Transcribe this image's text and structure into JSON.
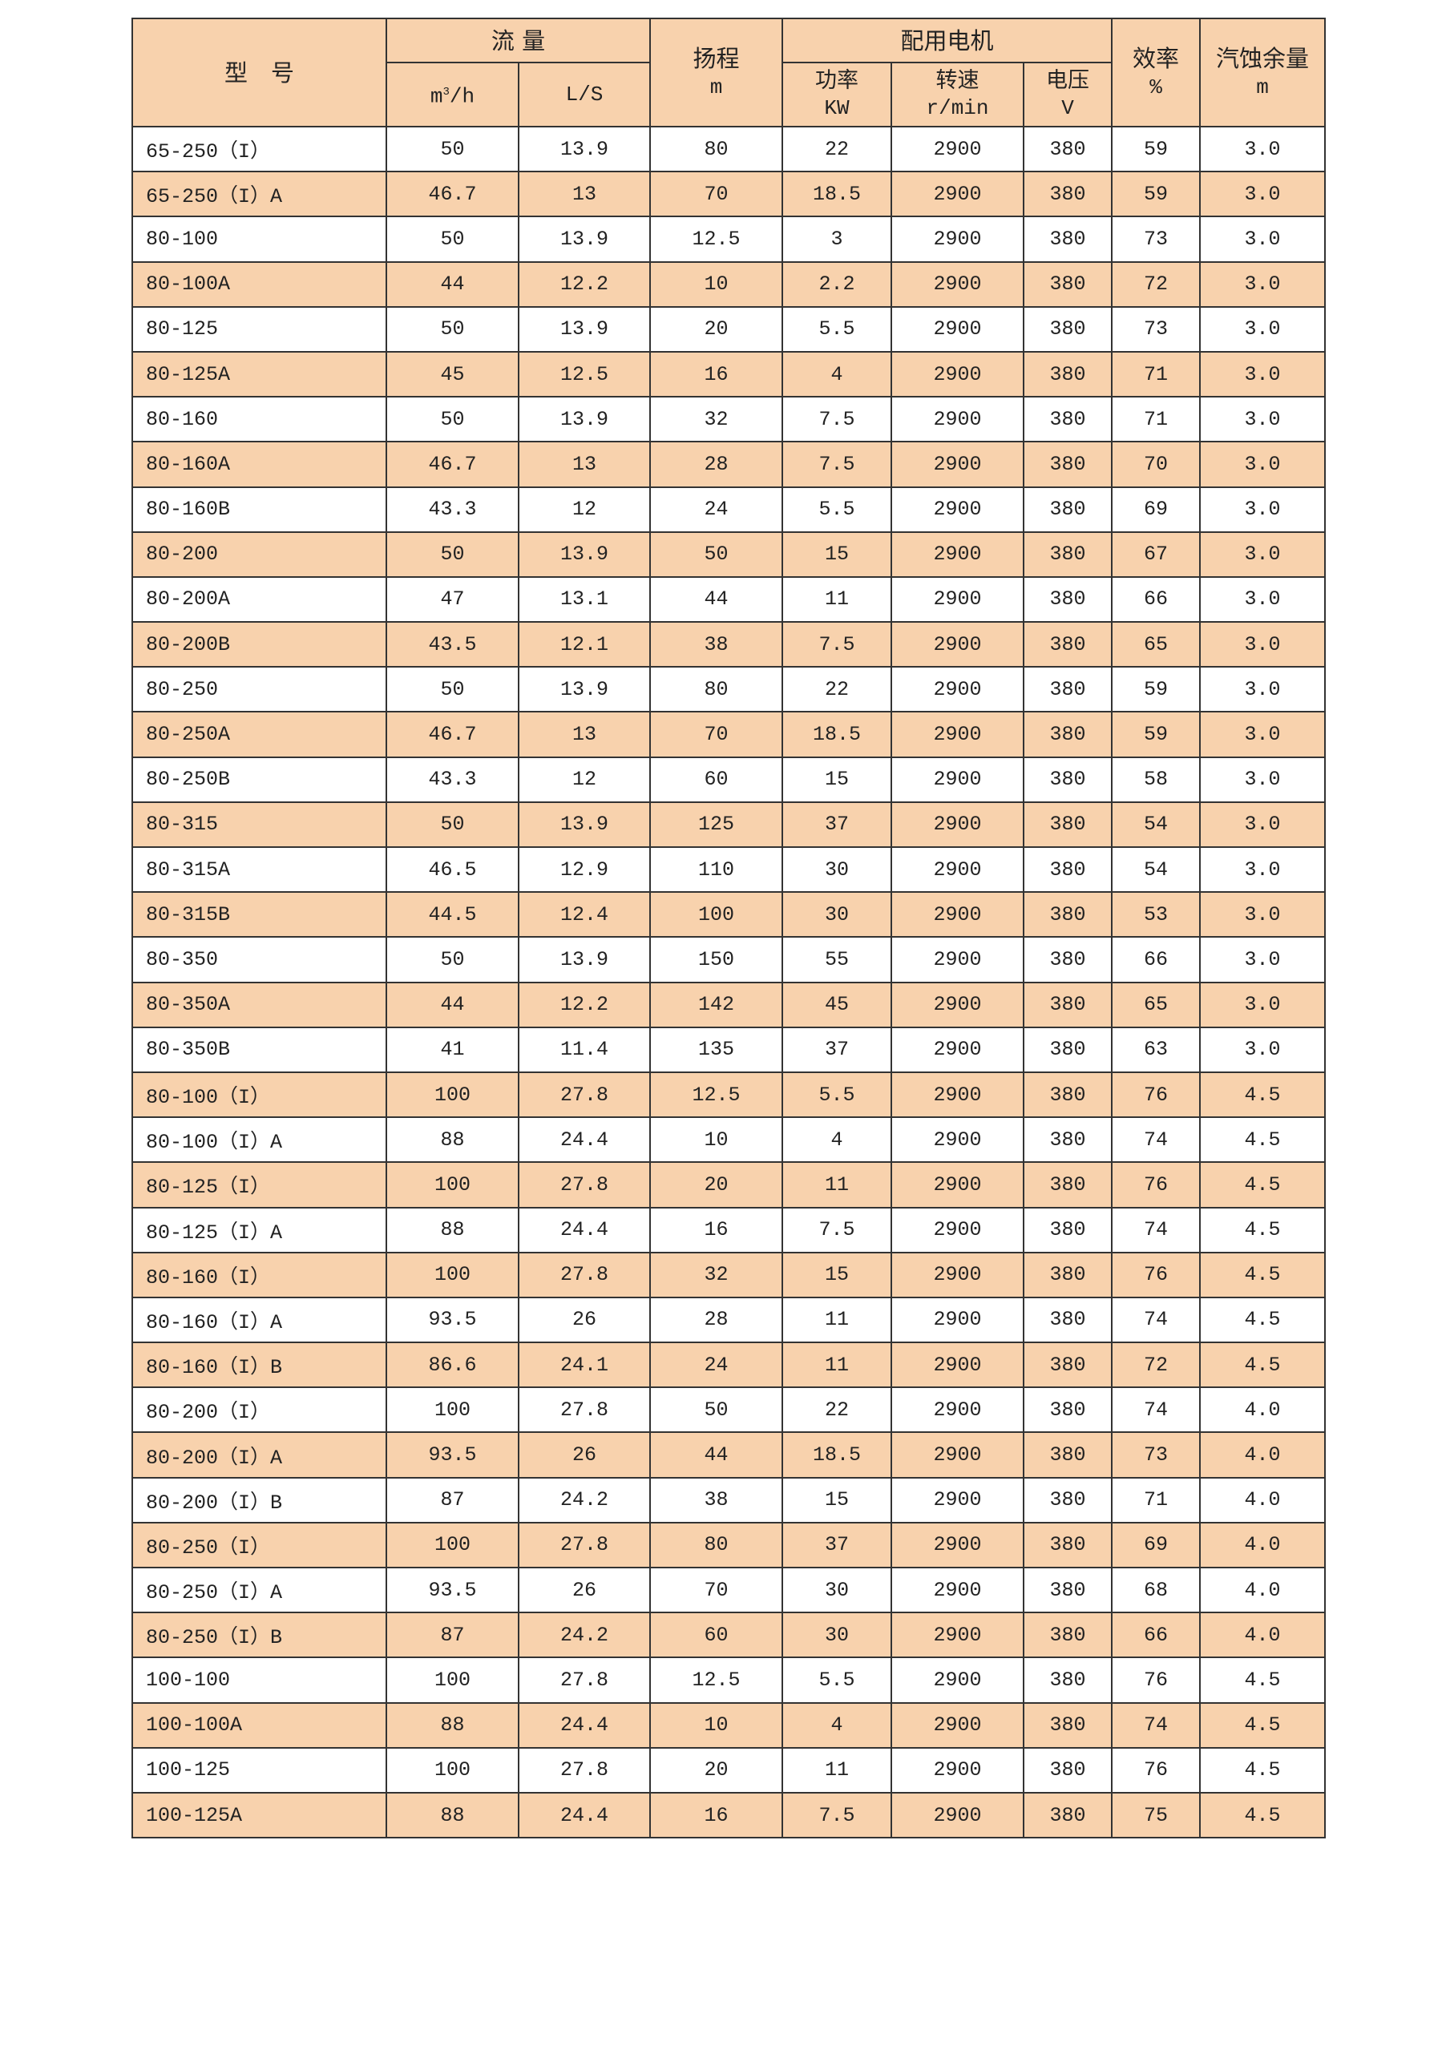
{
  "header": {
    "model": "型　号",
    "flow": "流 量",
    "flow_m3h_unit": "m",
    "flow_m3h_sup": "3",
    "flow_m3h_tail": "/h",
    "flow_ls": "L/S",
    "head": "扬程",
    "head_unit": "m",
    "motor": "配用电机",
    "power": "功率",
    "power_unit": "KW",
    "speed": "转速",
    "speed_unit": "r/min",
    "voltage": "电压",
    "voltage_unit": "V",
    "efficiency": "效率",
    "efficiency_unit": "%",
    "npsh": "汽蚀余量",
    "npsh_unit": "m"
  },
  "row_shading_color": "#f8d2ad",
  "rows": [
    [
      "65-250（I）",
      "50",
      "13.9",
      "80",
      "22",
      "2900",
      "380",
      "59",
      "3.0"
    ],
    [
      "65-250（I）A",
      "46.7",
      "13",
      "70",
      "18.5",
      "2900",
      "380",
      "59",
      "3.0"
    ],
    [
      "80-100",
      "50",
      "13.9",
      "12.5",
      "3",
      "2900",
      "380",
      "73",
      "3.0"
    ],
    [
      "80-100A",
      "44",
      "12.2",
      "10",
      "2.2",
      "2900",
      "380",
      "72",
      "3.0"
    ],
    [
      "80-125",
      "50",
      "13.9",
      "20",
      "5.5",
      "2900",
      "380",
      "73",
      "3.0"
    ],
    [
      "80-125A",
      "45",
      "12.5",
      "16",
      "4",
      "2900",
      "380",
      "71",
      "3.0"
    ],
    [
      "80-160",
      "50",
      "13.9",
      "32",
      "7.5",
      "2900",
      "380",
      "71",
      "3.0"
    ],
    [
      "80-160A",
      "46.7",
      "13",
      "28",
      "7.5",
      "2900",
      "380",
      "70",
      "3.0"
    ],
    [
      "80-160B",
      "43.3",
      "12",
      "24",
      "5.5",
      "2900",
      "380",
      "69",
      "3.0"
    ],
    [
      "80-200",
      "50",
      "13.9",
      "50",
      "15",
      "2900",
      "380",
      "67",
      "3.0"
    ],
    [
      "80-200A",
      "47",
      "13.1",
      "44",
      "11",
      "2900",
      "380",
      "66",
      "3.0"
    ],
    [
      "80-200B",
      "43.5",
      "12.1",
      "38",
      "7.5",
      "2900",
      "380",
      "65",
      "3.0"
    ],
    [
      "80-250",
      "50",
      "13.9",
      "80",
      "22",
      "2900",
      "380",
      "59",
      "3.0"
    ],
    [
      "80-250A",
      "46.7",
      "13",
      "70",
      "18.5",
      "2900",
      "380",
      "59",
      "3.0"
    ],
    [
      "80-250B",
      "43.3",
      "12",
      "60",
      "15",
      "2900",
      "380",
      "58",
      "3.0"
    ],
    [
      "80-315",
      "50",
      "13.9",
      "125",
      "37",
      "2900",
      "380",
      "54",
      "3.0"
    ],
    [
      "80-315A",
      "46.5",
      "12.9",
      "110",
      "30",
      "2900",
      "380",
      "54",
      "3.0"
    ],
    [
      "80-315B",
      "44.5",
      "12.4",
      "100",
      "30",
      "2900",
      "380",
      "53",
      "3.0"
    ],
    [
      "80-350",
      "50",
      "13.9",
      "150",
      "55",
      "2900",
      "380",
      "66",
      "3.0"
    ],
    [
      "80-350A",
      "44",
      "12.2",
      "142",
      "45",
      "2900",
      "380",
      "65",
      "3.0"
    ],
    [
      "80-350B",
      "41",
      "11.4",
      "135",
      "37",
      "2900",
      "380",
      "63",
      "3.0"
    ],
    [
      "80-100（I）",
      "100",
      "27.8",
      "12.5",
      "5.5",
      "2900",
      "380",
      "76",
      "4.5"
    ],
    [
      "80-100（I）A",
      "88",
      "24.4",
      "10",
      "4",
      "2900",
      "380",
      "74",
      "4.5"
    ],
    [
      "80-125（I）",
      "100",
      "27.8",
      "20",
      "11",
      "2900",
      "380",
      "76",
      "4.5"
    ],
    [
      "80-125（I）A",
      "88",
      "24.4",
      "16",
      "7.5",
      "2900",
      "380",
      "74",
      "4.5"
    ],
    [
      "80-160（I）",
      "100",
      "27.8",
      "32",
      "15",
      "2900",
      "380",
      "76",
      "4.5"
    ],
    [
      "80-160（I）A",
      "93.5",
      "26",
      "28",
      "11",
      "2900",
      "380",
      "74",
      "4.5"
    ],
    [
      "80-160（I）B",
      "86.6",
      "24.1",
      "24",
      "11",
      "2900",
      "380",
      "72",
      "4.5"
    ],
    [
      "80-200（I）",
      "100",
      "27.8",
      "50",
      "22",
      "2900",
      "380",
      "74",
      "4.0"
    ],
    [
      "80-200（I）A",
      "93.5",
      "26",
      "44",
      "18.5",
      "2900",
      "380",
      "73",
      "4.0"
    ],
    [
      "80-200（I）B",
      "87",
      "24.2",
      "38",
      "15",
      "2900",
      "380",
      "71",
      "4.0"
    ],
    [
      "80-250（I）",
      "100",
      "27.8",
      "80",
      "37",
      "2900",
      "380",
      "69",
      "4.0"
    ],
    [
      "80-250（I）A",
      "93.5",
      "26",
      "70",
      "30",
      "2900",
      "380",
      "68",
      "4.0"
    ],
    [
      "80-250（I）B",
      "87",
      "24.2",
      "60",
      "30",
      "2900",
      "380",
      "66",
      "4.0"
    ],
    [
      "100-100",
      "100",
      "27.8",
      "12.5",
      "5.5",
      "2900",
      "380",
      "76",
      "4.5"
    ],
    [
      "100-100A",
      "88",
      "24.4",
      "10",
      "4",
      "2900",
      "380",
      "74",
      "4.5"
    ],
    [
      "100-125",
      "100",
      "27.8",
      "20",
      "11",
      "2900",
      "380",
      "76",
      "4.5"
    ],
    [
      "100-125A",
      "88",
      "24.4",
      "16",
      "7.5",
      "2900",
      "380",
      "75",
      "4.5"
    ]
  ]
}
